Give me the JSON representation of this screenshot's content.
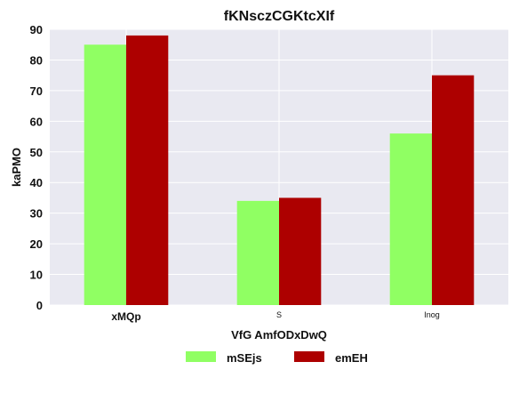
{
  "chart_data": {
    "type": "bar",
    "title": "fKNsczCGKtcXIf",
    "xlabel": "VfG AmfODxDwQ",
    "ylabel": "kaPMO",
    "categories": [
      "xMQp",
      "S",
      "Inog"
    ],
    "series": [
      {
        "name": "mSEjs",
        "values": [
          85,
          34,
          56
        ],
        "color": "#90FF63"
      },
      {
        "name": "emEH",
        "values": [
          88,
          35,
          75
        ],
        "color": "#AD0000"
      }
    ],
    "ylim": [
      0,
      90
    ],
    "yticks": [
      0,
      10,
      20,
      30,
      40,
      50,
      60,
      70,
      80,
      90
    ],
    "grid": true,
    "legend_position": "bottom-center",
    "background_color": "#E9E9F1"
  }
}
